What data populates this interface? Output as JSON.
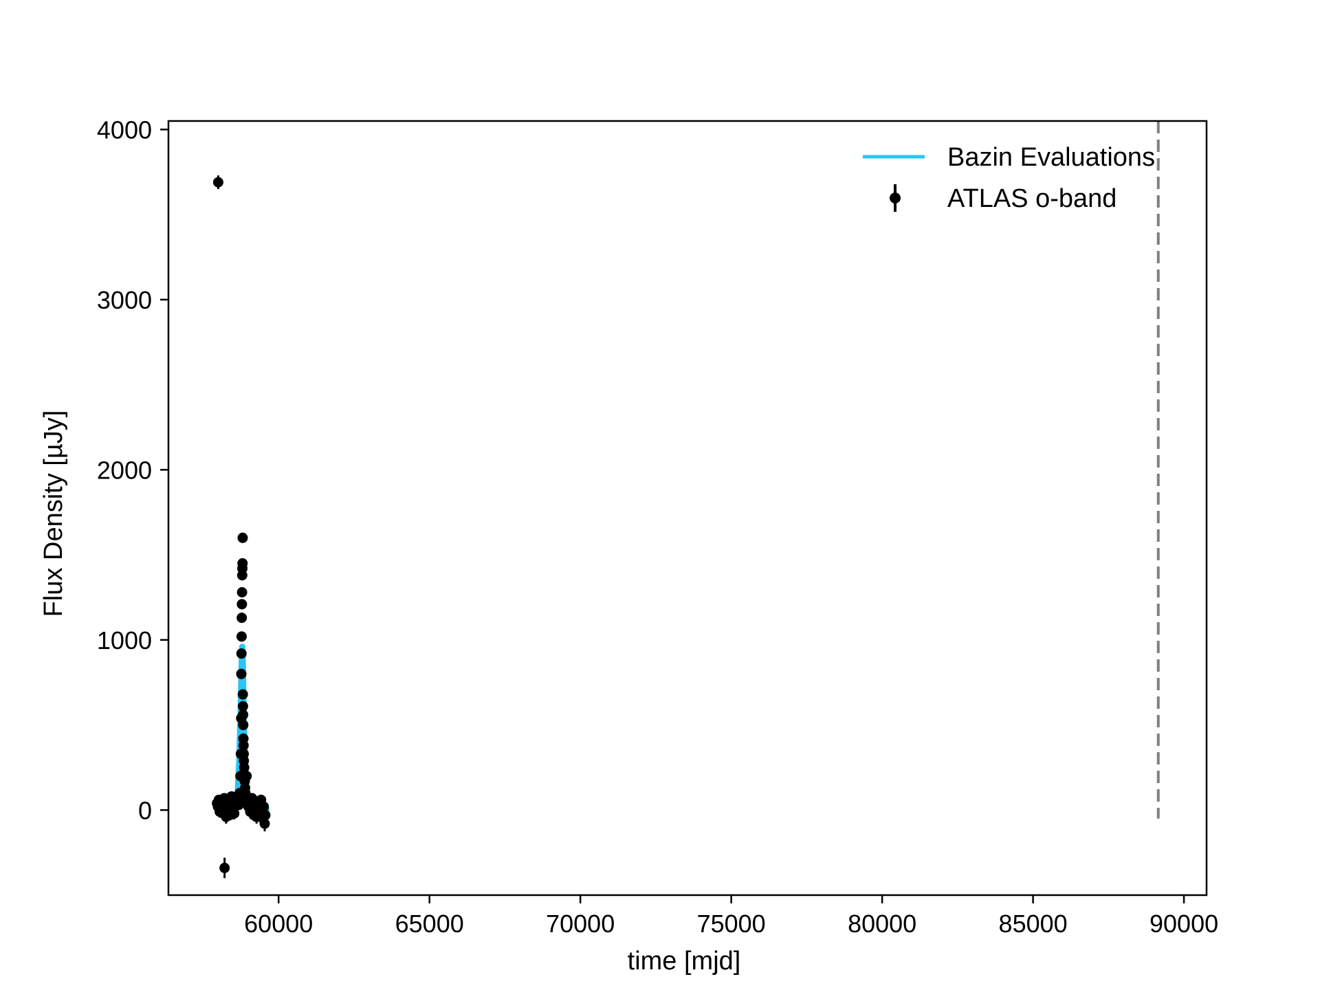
{
  "chart_data": {
    "type": "scatter",
    "title": "",
    "xlabel": "time [mjd]",
    "ylabel": "Flux Density [µJy]",
    "xlim": [
      56350,
      90750
    ],
    "ylim": [
      -500,
      4050
    ],
    "xticks": [
      60000,
      65000,
      70000,
      75000,
      80000,
      85000,
      90000
    ],
    "yticks": [
      0,
      1000,
      2000,
      3000,
      4000
    ],
    "xtick_labels": [
      "60000",
      "65000",
      "70000",
      "75000",
      "80000",
      "85000",
      "90000"
    ],
    "ytick_labels": [
      "0",
      "1000",
      "2000",
      "3000",
      "4000"
    ],
    "grid": false,
    "legend_position": "top-right",
    "vline": {
      "x": 89150,
      "style": "dashed",
      "color": "#808080",
      "y_from": -50
    },
    "series": [
      {
        "name": "Bazin Evaluations",
        "kind": "line",
        "color": "#29c5f6",
        "x": [
          58300,
          58500,
          58600,
          58650,
          58700,
          58740,
          58770,
          58790,
          58800,
          58810,
          58830,
          58860,
          58900,
          58950,
          59000,
          59100,
          59200,
          59400,
          59600
        ],
        "y": [
          0,
          5,
          30,
          120,
          300,
          560,
          800,
          930,
          960,
          900,
          700,
          450,
          220,
          100,
          45,
          12,
          4,
          1,
          0
        ]
      },
      {
        "name": "ATLAS o-band",
        "kind": "errorbar",
        "color": "#000000",
        "x": [
          58000,
          58210,
          57960,
          57990,
          58020,
          58050,
          58080,
          58110,
          58140,
          58170,
          58200,
          58230,
          58260,
          58290,
          58320,
          58350,
          58380,
          58410,
          58440,
          58470,
          58500,
          58530,
          58560,
          58590,
          58620,
          58650,
          58680,
          58710,
          58735,
          58750,
          58760,
          58765,
          58770,
          58775,
          58780,
          58785,
          58790,
          58795,
          58800,
          58805,
          58810,
          58815,
          58820,
          58825,
          58830,
          58835,
          58840,
          58845,
          58850,
          58860,
          58870,
          58880,
          58890,
          58900,
          58920,
          58940,
          58960,
          58980,
          59000,
          59030,
          59060,
          59090,
          59120,
          59150,
          59180,
          59210,
          59240,
          59270,
          59300,
          59330,
          59360,
          59390,
          59420,
          59450,
          59480,
          59510,
          59540,
          59560
        ],
        "y": [
          3690,
          -340,
          40,
          20,
          60,
          -10,
          30,
          50,
          10,
          -20,
          70,
          30,
          -40,
          20,
          60,
          0,
          -30,
          40,
          80,
          10,
          30,
          -20,
          50,
          70,
          40,
          60,
          30,
          100,
          200,
          330,
          540,
          800,
          920,
          1020,
          1130,
          1210,
          1280,
          1380,
          1420,
          1450,
          1600,
          680,
          610,
          560,
          500,
          420,
          380,
          330,
          290,
          250,
          210,
          170,
          130,
          100,
          80,
          200,
          60,
          40,
          20,
          50,
          -10,
          30,
          70,
          10,
          -30,
          40,
          20,
          -40,
          50,
          10,
          -20,
          30,
          60,
          0,
          -50,
          20,
          -80,
          -30
        ],
        "yerr": [
          40,
          60,
          30,
          30,
          30,
          35,
          30,
          30,
          30,
          35,
          30,
          30,
          40,
          30,
          30,
          35,
          30,
          30,
          30,
          30,
          30,
          35,
          30,
          30,
          30,
          30,
          30,
          30,
          30,
          30,
          30,
          30,
          30,
          30,
          30,
          30,
          30,
          30,
          30,
          30,
          30,
          30,
          30,
          30,
          30,
          30,
          30,
          30,
          30,
          30,
          30,
          30,
          30,
          30,
          30,
          30,
          30,
          30,
          30,
          30,
          30,
          30,
          30,
          30,
          35,
          30,
          30,
          40,
          30,
          30,
          35,
          30,
          30,
          30,
          40,
          30,
          45,
          40
        ]
      }
    ]
  }
}
